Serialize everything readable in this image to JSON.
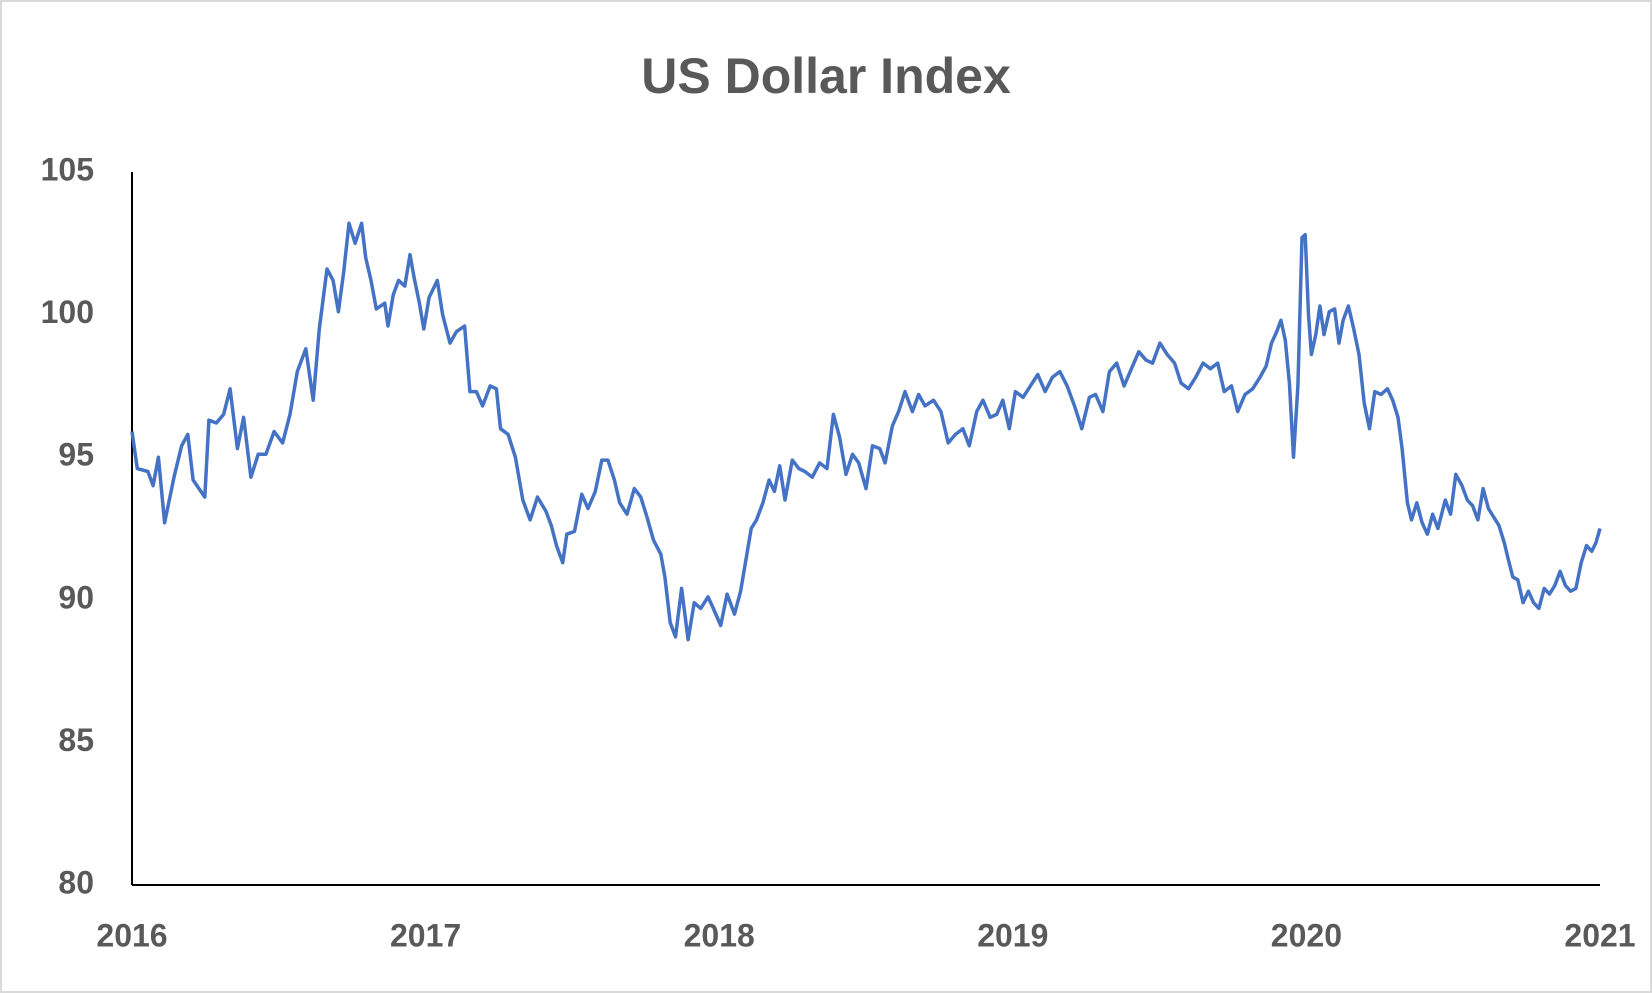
{
  "chart_data": {
    "type": "line",
    "title": "US Dollar Index",
    "color": "#4472c4",
    "grid": false,
    "xlim": [
      2016,
      2021
    ],
    "xticks": [
      2016,
      2017,
      2018,
      2019,
      2020,
      2021
    ],
    "ylim": [
      80,
      105
    ],
    "yticks": [
      80,
      85,
      90,
      95,
      100,
      105
    ],
    "x": [
      2016.0,
      2016.018,
      2016.054,
      2016.072,
      2016.09,
      2016.111,
      2016.143,
      2016.169,
      2016.19,
      2016.208,
      2016.248,
      2016.262,
      2016.287,
      2016.312,
      2016.334,
      2016.359,
      2016.38,
      2016.405,
      2016.43,
      2016.456,
      2016.484,
      2016.513,
      2016.538,
      2016.563,
      2016.592,
      2016.617,
      2016.638,
      2016.664,
      2016.685,
      2016.703,
      2016.721,
      2016.739,
      2016.76,
      2016.782,
      2016.796,
      2016.814,
      2016.832,
      2016.861,
      2016.872,
      2016.89,
      2016.908,
      2016.929,
      2016.947,
      2016.961,
      2016.979,
      2016.994,
      2017.012,
      2017.04,
      2017.058,
      2017.083,
      2017.105,
      2017.133,
      2017.151,
      2017.173,
      2017.194,
      2017.22,
      2017.241,
      2017.255,
      2017.281,
      2017.306,
      2017.331,
      2017.356,
      2017.381,
      2017.41,
      2017.428,
      2017.446,
      2017.467,
      2017.481,
      2017.507,
      2017.532,
      2017.553,
      2017.578,
      2017.6,
      2017.621,
      2017.643,
      2017.661,
      2017.686,
      2017.711,
      2017.733,
      2017.754,
      2017.776,
      2017.801,
      2017.815,
      2017.833,
      2017.851,
      2017.872,
      2017.894,
      2017.915,
      2017.937,
      2017.962,
      2017.98,
      2018.005,
      2018.027,
      2018.052,
      2018.073,
      2018.091,
      2018.109,
      2018.127,
      2018.149,
      2018.17,
      2018.188,
      2018.206,
      2018.224,
      2018.249,
      2018.271,
      2018.292,
      2018.317,
      2018.342,
      2018.367,
      2018.389,
      2018.41,
      2018.432,
      2018.454,
      2018.475,
      2018.5,
      2018.522,
      2018.547,
      2018.565,
      2018.59,
      2018.611,
      2018.633,
      2018.658,
      2018.679,
      2018.701,
      2018.73,
      2018.755,
      2018.78,
      2018.805,
      2018.83,
      2018.852,
      2018.877,
      2018.898,
      2018.923,
      2018.945,
      2018.966,
      2018.988,
      2019.009,
      2019.035,
      2019.06,
      2019.085,
      2019.11,
      2019.135,
      2019.16,
      2019.185,
      2019.21,
      2019.235,
      2019.261,
      2019.282,
      2019.307,
      2019.329,
      2019.354,
      2019.379,
      2019.404,
      2019.429,
      2019.454,
      2019.476,
      2019.501,
      2019.526,
      2019.551,
      2019.573,
      2019.598,
      2019.623,
      2019.648,
      2019.673,
      2019.698,
      2019.72,
      2019.745,
      2019.766,
      2019.791,
      2019.817,
      2019.842,
      2019.863,
      2019.881,
      2019.899,
      2019.913,
      2019.928,
      2019.942,
      2019.956,
      2019.971,
      2019.985,
      2019.996,
      2020.007,
      2020.017,
      2020.032,
      2020.046,
      2020.06,
      2020.078,
      2020.096,
      2020.111,
      2020.125,
      2020.143,
      2020.161,
      2020.179,
      2020.197,
      2020.215,
      2020.233,
      2020.254,
      2020.276,
      2020.294,
      2020.312,
      2020.326,
      2020.344,
      2020.358,
      2020.376,
      2020.394,
      2020.412,
      2020.43,
      2020.448,
      2020.473,
      2020.491,
      2020.509,
      2020.53,
      2020.548,
      2020.566,
      2020.584,
      2020.602,
      2020.62,
      2020.638,
      2020.656,
      2020.674,
      2020.688,
      2020.703,
      2020.72,
      2020.738,
      2020.756,
      2020.774,
      2020.792,
      2020.81,
      2020.828,
      2020.846,
      2020.864,
      2020.882,
      2020.9,
      2020.918,
      2020.936,
      2020.954,
      2020.972,
      2020.986,
      2021.0
    ],
    "values": [
      95.9,
      94.6,
      94.5,
      94.0,
      95.0,
      92.7,
      94.3,
      95.4,
      95.8,
      94.2,
      93.6,
      96.3,
      96.2,
      96.5,
      97.4,
      95.3,
      96.4,
      94.3,
      95.1,
      95.1,
      95.9,
      95.5,
      96.5,
      98.0,
      98.8,
      97.0,
      99.5,
      101.6,
      101.2,
      100.1,
      101.5,
      103.2,
      102.5,
      103.2,
      102.0,
      101.2,
      100.2,
      100.4,
      99.6,
      100.7,
      101.2,
      101.0,
      102.1,
      101.3,
      100.4,
      99.5,
      100.6,
      101.2,
      100.0,
      99.0,
      99.4,
      99.6,
      97.3,
      97.3,
      96.8,
      97.5,
      97.4,
      96.0,
      95.8,
      95.0,
      93.5,
      92.8,
      93.6,
      93.1,
      92.6,
      91.9,
      91.3,
      92.3,
      92.4,
      93.7,
      93.2,
      93.8,
      94.9,
      94.9,
      94.2,
      93.4,
      93.0,
      93.9,
      93.6,
      92.9,
      92.1,
      91.6,
      90.8,
      89.2,
      88.7,
      90.4,
      88.6,
      89.9,
      89.7,
      90.1,
      89.7,
      89.1,
      90.2,
      89.5,
      90.3,
      91.4,
      92.5,
      92.8,
      93.4,
      94.2,
      93.8,
      94.7,
      93.5,
      94.9,
      94.6,
      94.5,
      94.3,
      94.8,
      94.6,
      96.5,
      95.7,
      94.4,
      95.1,
      94.8,
      93.9,
      95.4,
      95.3,
      94.8,
      96.1,
      96.6,
      97.3,
      96.6,
      97.2,
      96.8,
      97.0,
      96.6,
      95.5,
      95.8,
      96.0,
      95.4,
      96.6,
      97.0,
      96.4,
      96.5,
      97.0,
      96.0,
      97.3,
      97.1,
      97.5,
      97.9,
      97.3,
      97.8,
      98.0,
      97.5,
      96.8,
      96.0,
      97.1,
      97.2,
      96.6,
      98.0,
      98.3,
      97.5,
      98.1,
      98.7,
      98.4,
      98.3,
      99.0,
      98.6,
      98.3,
      97.6,
      97.4,
      97.8,
      98.3,
      98.1,
      98.3,
      97.3,
      97.5,
      96.6,
      97.2,
      97.4,
      97.8,
      98.2,
      99.0,
      99.4,
      99.8,
      99.1,
      97.6,
      95.0,
      97.5,
      102.7,
      102.8,
      100.0,
      98.6,
      99.3,
      100.3,
      99.3,
      100.1,
      100.2,
      99.0,
      99.8,
      100.3,
      99.5,
      98.6,
      96.9,
      96.0,
      97.3,
      97.2,
      97.4,
      97.0,
      96.4,
      95.3,
      93.4,
      92.8,
      93.4,
      92.7,
      92.3,
      93.0,
      92.5,
      93.5,
      93.0,
      94.4,
      94.0,
      93.5,
      93.3,
      92.8,
      93.9,
      93.2,
      92.9,
      92.6,
      92.0,
      91.4,
      90.8,
      90.7,
      89.9,
      90.3,
      89.9,
      89.7,
      90.4,
      90.2,
      90.5,
      91.0,
      90.5,
      90.3,
      90.4,
      91.3,
      91.9,
      91.7,
      92.0,
      92.5
    ]
  }
}
